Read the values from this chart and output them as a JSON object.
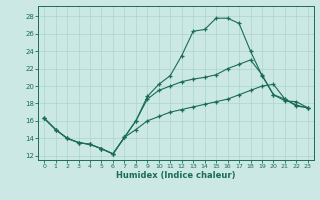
{
  "xlabel": "Humidex (Indice chaleur)",
  "bg_color": "#cce8e4",
  "grid_color": "#aad4ce",
  "line_color": "#1a6b5a",
  "xlim": [
    -0.5,
    23.5
  ],
  "ylim": [
    11.5,
    29.2
  ],
  "xticks": [
    0,
    1,
    2,
    3,
    4,
    5,
    6,
    7,
    8,
    9,
    10,
    11,
    12,
    13,
    14,
    15,
    16,
    17,
    18,
    19,
    20,
    21,
    22,
    23
  ],
  "yticks": [
    12,
    14,
    16,
    18,
    20,
    22,
    24,
    26,
    28
  ],
  "line1_x": [
    0,
    1,
    2,
    3,
    4,
    5,
    6,
    7,
    8,
    9,
    10,
    11,
    12,
    13,
    14,
    15,
    16,
    17,
    18,
    19,
    20,
    21,
    22,
    23
  ],
  "line1_y": [
    16.3,
    15.0,
    14.0,
    13.5,
    13.3,
    12.8,
    12.2,
    14.1,
    16.0,
    18.8,
    20.2,
    21.2,
    23.5,
    26.3,
    26.5,
    27.8,
    27.8,
    27.2,
    24.0,
    21.2,
    19.0,
    18.3,
    18.2,
    17.5
  ],
  "line2_x": [
    0,
    1,
    2,
    3,
    4,
    5,
    6,
    7,
    8,
    9,
    10,
    11,
    12,
    13,
    14,
    15,
    16,
    17,
    18,
    19,
    20,
    21,
    22,
    23
  ],
  "line2_y": [
    16.3,
    15.0,
    14.0,
    13.5,
    13.3,
    12.8,
    12.2,
    14.1,
    16.0,
    18.5,
    19.5,
    20.0,
    20.5,
    20.8,
    21.0,
    21.3,
    22.0,
    22.5,
    23.0,
    21.3,
    19.0,
    18.5,
    17.8,
    17.5
  ],
  "line3_x": [
    0,
    1,
    2,
    3,
    4,
    5,
    6,
    7,
    8,
    9,
    10,
    11,
    12,
    13,
    14,
    15,
    16,
    17,
    18,
    19,
    20,
    21,
    22,
    23
  ],
  "line3_y": [
    16.3,
    15.0,
    14.0,
    13.5,
    13.3,
    12.8,
    12.2,
    14.1,
    15.0,
    16.0,
    16.5,
    17.0,
    17.3,
    17.6,
    17.9,
    18.2,
    18.5,
    19.0,
    19.5,
    20.0,
    20.2,
    18.5,
    17.7,
    17.5
  ]
}
